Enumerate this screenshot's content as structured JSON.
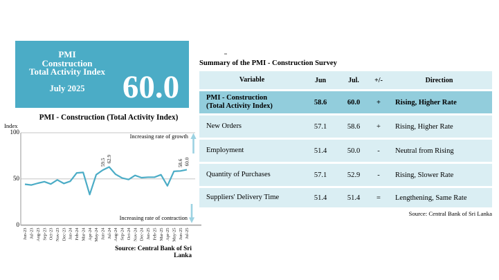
{
  "summary_box": {
    "title_line1": "PMI",
    "title_line2": "Construction",
    "title_line3": "Total Activity Index",
    "period": "July 2025",
    "value": "60.0"
  },
  "chart": {
    "title": "PMI - Construction (Total Activity Index)",
    "y_axis_label": "Index",
    "y_ticks": [
      "100",
      "50",
      "0"
    ],
    "growth_note": "Increasing rate of growth",
    "contraction_note": "Increasing rate of contraction",
    "source": "Source: Central Bank of Sri Lanka"
  },
  "chart_data": {
    "type": "line",
    "x": [
      "Jun-23",
      "Jul-23",
      "Aug-23",
      "Sep-23",
      "Oct-23",
      "Nov-23",
      "Dec-23",
      "Jan-24",
      "Feb-24",
      "Mar-24",
      "Apr-24",
      "May-24",
      "Jun-24",
      "Jul-24",
      "Aug-24",
      "Sep-24",
      "Oct-24",
      "Nov-24",
      "Dec-24",
      "Jan-25",
      "Feb-25",
      "Mar-25",
      "Apr-25",
      "May-25",
      "Jun-25",
      "Jul-25"
    ],
    "values": [
      44.2,
      43.4,
      45.3,
      47.0,
      44.4,
      48.9,
      45.0,
      47.4,
      56.5,
      57.0,
      33.0,
      54.5,
      59.5,
      62.9,
      55.0,
      51.0,
      49.3,
      53.8,
      51.3,
      51.8,
      51.8,
      54.5,
      42.5,
      58.2,
      58.6,
      60.0
    ],
    "point_labels": [
      {
        "index": 12,
        "label": "59.5"
      },
      {
        "index": 13,
        "label": "62.9"
      },
      {
        "index": 24,
        "label": "58.6"
      },
      {
        "index": 25,
        "label": "60.0"
      }
    ],
    "title": "PMI - Construction (Total Activity Index)",
    "xlabel": "",
    "ylabel": "Index",
    "ylim": [
      0,
      100
    ],
    "grid": "horizontal lines at 0, 50, 100",
    "line_color": "#4BACC6"
  },
  "table": {
    "title": "Summary of the PMI - Construction Survey",
    "columns": [
      "Variable",
      "Jun",
      "Jul.",
      "+/-",
      "Direction"
    ],
    "rows": [
      {
        "variable": [
          "PMI - Construction",
          "(Total Activity Index)"
        ],
        "jun": "58.6",
        "jul": "60.0",
        "change": "+",
        "direction": "Rising, Higher Rate",
        "highlight": true
      },
      {
        "variable": "New Orders",
        "jun": "57.1",
        "jul": "58.6",
        "change": "+",
        "direction": "Rising, Higher Rate",
        "highlight": false
      },
      {
        "variable": "Employment",
        "jun": "51.4",
        "jul": "50.0",
        "change": "-",
        "direction": "Neutral from Rising",
        "highlight": false
      },
      {
        "variable": "Quantity of Purchases",
        "jun": "57.1",
        "jul": "52.9",
        "change": "-",
        "direction": "Rising, Slower Rate",
        "highlight": false
      },
      {
        "variable": "Suppliers' Delivery Time",
        "jun": "51.4",
        "jul": "51.4",
        "change": "=",
        "direction": "Lengthening, Same Rate",
        "highlight": false
      }
    ],
    "source": "Source: Central Bank of Sri Lanka"
  },
  "colors": {
    "accent_teal": "#4BACC6",
    "table_highlight_row": "#92CDDC",
    "table_light_row": "#DAEEF3",
    "chart_line": "#4BACC6",
    "arrow": "#9CD2E2",
    "gridline": "#C6C6C6",
    "axis": "#A8A8A8"
  }
}
